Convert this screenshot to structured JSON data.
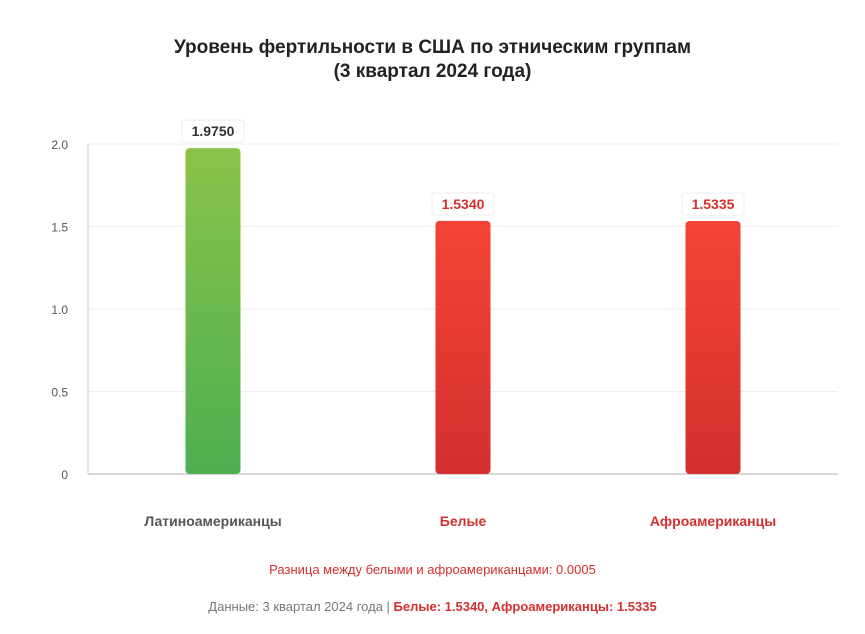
{
  "title": {
    "line1": "Уровень фертильности в США по этническим группам",
    "line2": "(3 квартал 2024 года)"
  },
  "chart_data": {
    "type": "bar",
    "categories": [
      "Латиноамериканцы",
      "Белые",
      "Афроамериканцы"
    ],
    "values": [
      1.975,
      1.534,
      1.5335
    ],
    "value_labels": [
      "1.9750",
      "1.5340",
      "1.5335"
    ],
    "yticks": [
      0,
      0.5,
      1.0,
      1.5,
      2.0
    ],
    "ytick_labels": [
      "0",
      "0.5",
      "1.0",
      "1.5",
      "2.0"
    ],
    "ylim": [
      0,
      2.0
    ],
    "grid": true,
    "bar_colors": [
      {
        "top": "#8bc34a",
        "bottom": "#4caf50"
      },
      {
        "top": "#f44336",
        "bottom": "#d32f2f"
      },
      {
        "top": "#f44336",
        "bottom": "#d32f2f"
      }
    ],
    "label_colors": [
      "#555555",
      "#d32f2f",
      "#d32f2f"
    ],
    "value_label_colors": [
      "#333333",
      "#d32f2f",
      "#d32f2f"
    ]
  },
  "notes": {
    "difference": "Разница между белыми и афроамериканцами: 0.0005",
    "footer_prefix": "Данные: 3 квартал 2024 года | ",
    "footer_highlight": "Белые: 1.5340, Афроамериканцы: 1.5335"
  },
  "colors": {
    "accent_red": "#d32f2f",
    "grid": "#eeeeee",
    "axis": "#cccccc"
  }
}
